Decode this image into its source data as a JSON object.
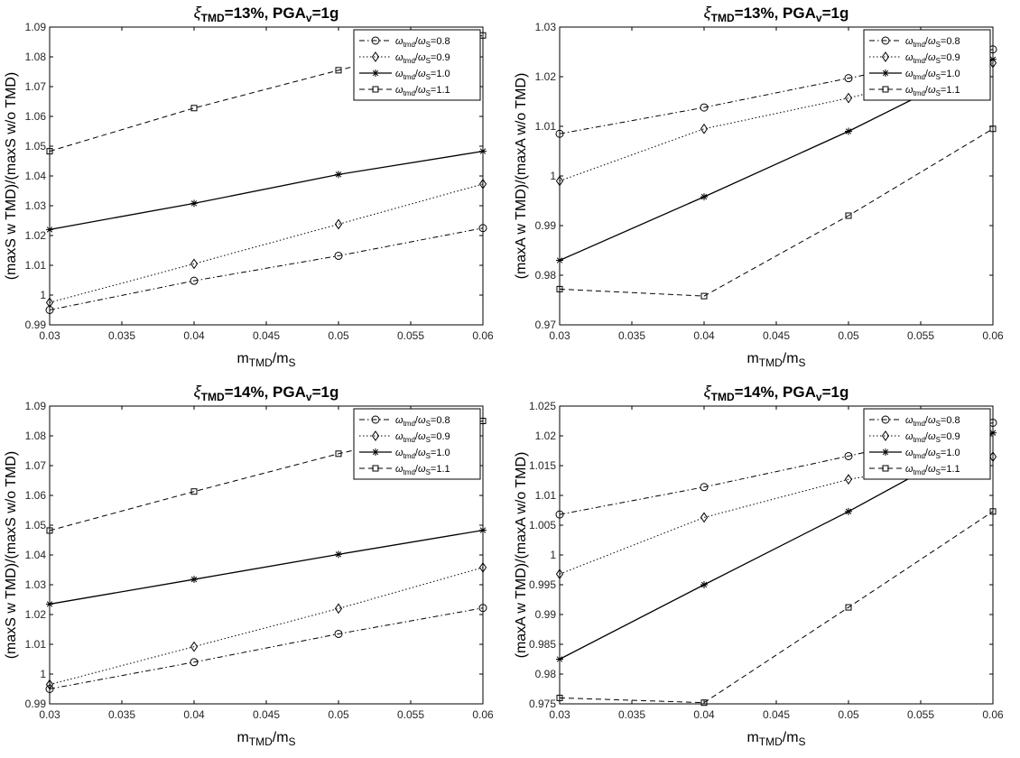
{
  "figure": {
    "panels": 4
  },
  "chart_data": [
    {
      "type": "line",
      "title_symbol": "ξ",
      "title_sub": "TMD",
      "title_rest": "=13%, PGA",
      "title_sub2": "v",
      "title_end": "=1g",
      "xlabel_main": "m",
      "xlabel_sub1": "TMD",
      "xlabel_mid": "/m",
      "xlabel_sub2": "S",
      "ylabel": "(maxS w TMD)/(maxS w/o TMD)",
      "xlim": [
        0.03,
        0.06
      ],
      "ylim": [
        0.99,
        1.09
      ],
      "xticks": [
        "0.03",
        "0.035",
        "0.04",
        "0.045",
        "0.05",
        "0.055",
        "0.06"
      ],
      "yticks": [
        "0.99",
        "1",
        "1.01",
        "1.02",
        "1.03",
        "1.04",
        "1.05",
        "1.06",
        "1.07",
        "1.08",
        "1.09"
      ],
      "x": [
        0.03,
        0.04,
        0.05,
        0.06
      ],
      "legend_position": "top-right",
      "series": [
        {
          "name": "ω_tmd/ω_S=0.8",
          "marker": "circle",
          "line": "dashdot",
          "values": [
            0.995,
            1.0048,
            1.0132,
            1.0225
          ]
        },
        {
          "name": "ω_tmd/ω_S=0.9",
          "marker": "diamond",
          "line": "dotted",
          "values": [
            0.9975,
            1.0105,
            1.0238,
            1.0373
          ]
        },
        {
          "name": "ω_tmd/ω_S=1.0",
          "marker": "star",
          "line": "solid",
          "values": [
            1.022,
            1.0308,
            1.0405,
            1.0483
          ]
        },
        {
          "name": "ω_tmd/ω_S=1.1",
          "marker": "square",
          "line": "dashed",
          "values": [
            1.0483,
            1.0628,
            1.0755,
            1.0872
          ]
        }
      ]
    },
    {
      "type": "line",
      "title_symbol": "ξ",
      "title_sub": "TMD",
      "title_rest": "=13%, PGA",
      "title_sub2": "v",
      "title_end": "=1g",
      "xlabel_main": "m",
      "xlabel_sub1": "TMD",
      "xlabel_mid": "/m",
      "xlabel_sub2": "S",
      "ylabel": "(maxA w TMD)/(maxA w/o TMD)",
      "xlim": [
        0.03,
        0.06
      ],
      "ylim": [
        0.97,
        1.03
      ],
      "xticks": [
        "0.03",
        "0.035",
        "0.04",
        "0.045",
        "0.05",
        "0.055",
        "0.06"
      ],
      "yticks": [
        "0.97",
        "0.98",
        "0.99",
        "1",
        "1.01",
        "1.02",
        "1.03"
      ],
      "x": [
        0.03,
        0.04,
        0.05,
        0.06
      ],
      "legend_position": "top-right",
      "series": [
        {
          "name": "ω_tmd/ω_S=0.8",
          "marker": "circle",
          "line": "dashdot",
          "values": [
            1.0085,
            1.0138,
            1.0197,
            1.0255
          ]
        },
        {
          "name": "ω_tmd/ω_S=0.9",
          "marker": "diamond",
          "line": "dotted",
          "values": [
            0.999,
            1.0095,
            1.0157,
            1.0228
          ]
        },
        {
          "name": "ω_tmd/ω_S=1.0",
          "marker": "star",
          "line": "solid",
          "values": [
            0.983,
            0.9958,
            1.009,
            1.0235
          ]
        },
        {
          "name": "ω_tmd/ω_S=1.1",
          "marker": "square",
          "line": "dashed",
          "values": [
            0.9772,
            0.9758,
            0.992,
            1.0095
          ]
        }
      ]
    },
    {
      "type": "line",
      "title_symbol": "ξ",
      "title_sub": "TMD",
      "title_rest": "=14%, PGA",
      "title_sub2": "v",
      "title_end": "=1g",
      "xlabel_main": "m",
      "xlabel_sub1": "TMD",
      "xlabel_mid": "/m",
      "xlabel_sub2": "S",
      "ylabel": "(maxS w TMD)/(maxS w/o TMD)",
      "xlim": [
        0.03,
        0.06
      ],
      "ylim": [
        0.99,
        1.09
      ],
      "xticks": [
        "0.03",
        "0.035",
        "0.04",
        "0.045",
        "0.05",
        "0.055",
        "0.06"
      ],
      "yticks": [
        "0.99",
        "1",
        "1.01",
        "1.02",
        "1.03",
        "1.04",
        "1.05",
        "1.06",
        "1.07",
        "1.08",
        "1.09"
      ],
      "x": [
        0.03,
        0.04,
        0.05,
        0.06
      ],
      "legend_position": "top-right",
      "series": [
        {
          "name": "ω_tmd/ω_S=0.8",
          "marker": "circle",
          "line": "dashdot",
          "values": [
            0.995,
            1.004,
            1.0135,
            1.0222
          ]
        },
        {
          "name": "ω_tmd/ω_S=0.9",
          "marker": "diamond",
          "line": "dotted",
          "values": [
            0.9965,
            1.0092,
            1.022,
            1.0358
          ]
        },
        {
          "name": "ω_tmd/ω_S=1.0",
          "marker": "star",
          "line": "solid",
          "values": [
            1.0235,
            1.0318,
            1.0402,
            1.0483
          ]
        },
        {
          "name": "ω_tmd/ω_S=1.1",
          "marker": "square",
          "line": "dashed",
          "values": [
            1.0482,
            1.0613,
            1.074,
            1.085
          ]
        }
      ]
    },
    {
      "type": "line",
      "title_symbol": "ξ",
      "title_sub": "TMD",
      "title_rest": "=14%, PGA",
      "title_sub2": "v",
      "title_end": "=1g",
      "xlabel_main": "m",
      "xlabel_sub1": "TMD",
      "xlabel_mid": "/m",
      "xlabel_sub2": "S",
      "ylabel": "(maxA w TMD)/(maxA w/o TMD)",
      "xlim": [
        0.03,
        0.06
      ],
      "ylim": [
        0.975,
        1.025
      ],
      "xticks": [
        "0.03",
        "0.035",
        "0.04",
        "0.045",
        "0.05",
        "0.055",
        "0.06"
      ],
      "yticks": [
        "0.975",
        "0.98",
        "0.985",
        "0.99",
        "0.995",
        "1",
        "1.005",
        "1.01",
        "1.015",
        "1.02",
        "1.025"
      ],
      "x": [
        0.03,
        0.04,
        0.05,
        0.06
      ],
      "legend_position": "top-right",
      "series": [
        {
          "name": "ω_tmd/ω_S=0.8",
          "marker": "circle",
          "line": "dashdot",
          "values": [
            1.0068,
            1.0114,
            1.0166,
            1.0222
          ]
        },
        {
          "name": "ω_tmd/ω_S=0.9",
          "marker": "diamond",
          "line": "dotted",
          "values": [
            0.9968,
            1.0063,
            1.0127,
            1.0165
          ]
        },
        {
          "name": "ω_tmd/ω_S=1.0",
          "marker": "star",
          "line": "solid",
          "values": [
            0.9825,
            0.995,
            1.0073,
            1.0205
          ]
        },
        {
          "name": "ω_tmd/ω_S=1.1",
          "marker": "square",
          "line": "dashed",
          "values": [
            0.976,
            0.9752,
            0.9912,
            1.0073
          ]
        }
      ]
    }
  ]
}
